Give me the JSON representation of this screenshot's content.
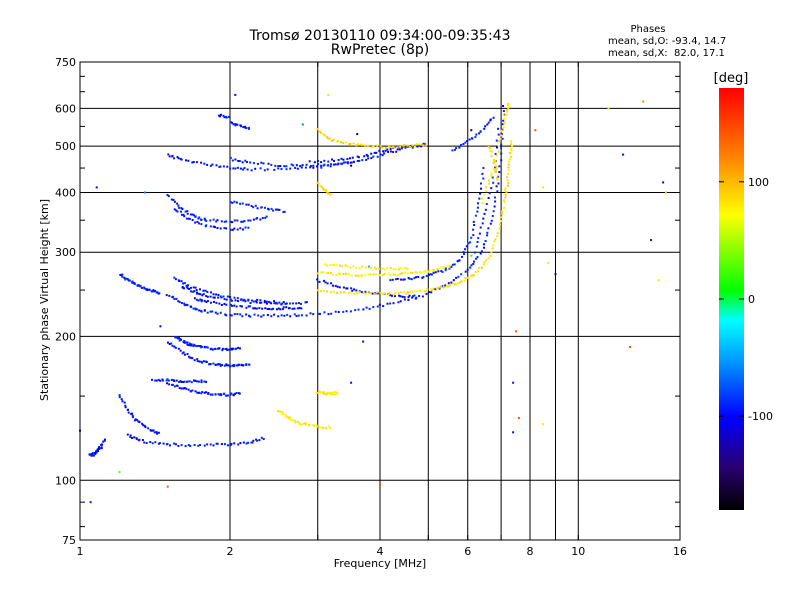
{
  "chart_data": {
    "type": "scatter",
    "title": "Tromsø 20130110 09:34:00-09:35:43",
    "subtitle": "RwPretec (8p)",
    "xlabel": "Frequency [MHz]",
    "ylabel": "Stationary phase Virtual Height [km]",
    "x_scale": "log",
    "y_scale": "log",
    "xlim": [
      1,
      16
    ],
    "ylim": [
      75,
      750
    ],
    "grid": true,
    "x_ticks": [
      1,
      2,
      4,
      6,
      8,
      10,
      16
    ],
    "x_tick_labels": [
      "1",
      "2",
      "4",
      "6",
      "8",
      "10",
      "16"
    ],
    "x_minor_ticks": [
      3,
      5,
      7,
      9
    ],
    "y_ticks": [
      75,
      100,
      200,
      300,
      400,
      500,
      600,
      750
    ],
    "y_tick_labels": [
      "75",
      "100",
      "200",
      "300",
      "400",
      "500",
      "600",
      "750"
    ],
    "colorbar": {
      "label": "[deg]",
      "range": [
        -180,
        180
      ],
      "ticks": [
        100,
        0,
        -100
      ],
      "tick_labels": [
        "100",
        "0",
        "-100"
      ]
    },
    "stats": {
      "header": "Phases",
      "line1": "mean, sd,O: -93.4, 14.7",
      "line2": "mean, sd,X:  82.0, 17.1"
    },
    "traces": [
      {
        "x": [
          1.05,
          1.06,
          1.08,
          1.1,
          1.12
        ],
        "y": [
          113,
          113,
          115,
          117,
          122
        ],
        "phase": -95
      },
      {
        "x": [
          1.25,
          1.32,
          1.45,
          1.6,
          1.8,
          2.0,
          2.2,
          2.35
        ],
        "y": [
          124,
          121,
          119,
          118.5,
          118.5,
          119,
          120,
          123
        ],
        "phase": -92
      },
      {
        "x": [
          1.2,
          1.25,
          1.3,
          1.38,
          1.45
        ],
        "y": [
          150,
          140,
          133,
          128,
          125
        ],
        "phase": -95
      },
      {
        "x": [
          1.5,
          1.6,
          1.7,
          1.8,
          1.9,
          2.0,
          2.1
        ],
        "y": [
          160,
          156,
          153,
          152,
          151,
          151,
          152
        ],
        "phase": -93
      },
      {
        "x": [
          1.4,
          1.5,
          1.6,
          1.7,
          1.8
        ],
        "y": [
          162,
          162,
          161,
          161,
          161
        ],
        "phase": -92
      },
      {
        "x": [
          1.5,
          1.6,
          1.7,
          1.8,
          1.9,
          2.0,
          2.1,
          2.2
        ],
        "y": [
          195,
          185,
          179,
          176,
          174.5,
          174,
          174,
          175
        ],
        "phase": -94
      },
      {
        "x": [
          1.55,
          1.6,
          1.65,
          1.7,
          1.8,
          1.9,
          2.0,
          2.1
        ],
        "y": [
          200,
          196,
          193,
          191,
          189,
          188,
          188,
          189
        ],
        "phase": -92
      },
      {
        "x": [
          1.2,
          1.25,
          1.3,
          1.35,
          1.4,
          1.45
        ],
        "y": [
          270,
          262,
          257,
          252,
          249,
          246
        ],
        "phase": -90
      },
      {
        "x": [
          1.5,
          1.6,
          1.7,
          1.8,
          2.0,
          2.2,
          2.5,
          2.8,
          3.2,
          3.7,
          4.2,
          4.8,
          5.4,
          6.0,
          6.4,
          6.7,
          6.9,
          7.05,
          7.1
        ],
        "y": [
          245,
          235,
          228,
          225,
          222,
          221,
          221,
          222,
          224,
          228,
          234,
          242,
          255,
          275,
          300,
          350,
          420,
          520,
          620
        ],
        "phase": -92
      },
      {
        "x": [
          1.55,
          1.65,
          1.8,
          2.0,
          2.3,
          2.6,
          2.9
        ],
        "y": [
          265,
          255,
          247,
          241,
          237,
          235,
          235
        ],
        "phase": -92
      },
      {
        "x": [
          1.6,
          1.7,
          1.8,
          2.0,
          2.2,
          2.4,
          2.6
        ],
        "y": [
          255,
          248,
          243,
          239,
          236,
          235,
          234
        ],
        "phase": -95
      },
      {
        "x": [
          1.7,
          1.8,
          2.0,
          2.2,
          2.4,
          2.6,
          2.8
        ],
        "y": [
          240,
          236,
          232,
          230,
          229,
          229,
          230
        ],
        "phase": -95
      },
      {
        "x": [
          3.0,
          3.3,
          3.6,
          4.0,
          4.4,
          4.8
        ],
        "y": [
          262,
          254,
          249,
          245,
          243,
          242
        ],
        "phase": -95
      },
      {
        "x": [
          4.2,
          4.6,
          5.0,
          5.4,
          5.8,
          6.1,
          6.3,
          6.5
        ],
        "y": [
          262,
          264,
          268,
          275,
          290,
          320,
          380,
          460
        ],
        "phase": -90
      },
      {
        "x": [
          1.5,
          1.6,
          1.7,
          1.8,
          2.0,
          2.2,
          2.4
        ],
        "y": [
          395,
          370,
          355,
          350,
          348,
          350,
          355
        ],
        "phase": -92
      },
      {
        "x": [
          1.55,
          1.65,
          1.8,
          2.0,
          2.2
        ],
        "y": [
          370,
          352,
          340,
          335,
          337
        ],
        "phase": -95
      },
      {
        "x": [
          2.0,
          2.2,
          2.4,
          2.6
        ],
        "y": [
          383,
          375,
          368,
          365
        ],
        "phase": -92
      },
      {
        "x": [
          1.5,
          1.6,
          1.8,
          2.0,
          2.2,
          2.6,
          3.0,
          3.4,
          3.8,
          4.2,
          4.6,
          5.0
        ],
        "y": [
          480,
          468,
          457,
          450,
          447,
          448,
          452,
          460,
          472,
          486,
          498,
          505
        ],
        "phase": -93
      },
      {
        "x": [
          2.0,
          2.2,
          2.5,
          2.8,
          3.2,
          3.6
        ],
        "y": [
          470,
          462,
          456,
          455,
          457,
          465
        ],
        "phase": -95
      },
      {
        "x": [
          2.9,
          3.3,
          3.7,
          4.1,
          4.5
        ],
        "y": [
          463,
          468,
          476,
          490,
          502
        ],
        "phase": -100
      },
      {
        "x": [
          2.0,
          2.1,
          2.2
        ],
        "y": [
          560,
          550,
          545
        ],
        "phase": -92
      },
      {
        "x": [
          1.9,
          2.0
        ],
        "y": [
          580,
          575
        ],
        "phase": -95
      },
      {
        "x": [
          5.6,
          6.0,
          6.4,
          6.8
        ],
        "y": [
          490,
          510,
          540,
          580
        ],
        "phase": -92
      },
      {
        "x": [
          6.2,
          6.5,
          6.8,
          6.95
        ],
        "y": [
          300,
          360,
          440,
          560
        ],
        "phase": -90
      },
      {
        "x": [
          3.0,
          3.4,
          3.8,
          4.2,
          4.6,
          5.0,
          5.4,
          5.8,
          6.2,
          6.6,
          6.9,
          7.1,
          7.2,
          7.3,
          7.35
        ],
        "y": [
          250,
          247,
          246,
          246,
          247,
          250,
          254,
          260,
          270,
          290,
          330,
          380,
          420,
          470,
          520
        ],
        "phase": 85
      },
      {
        "x": [
          3.0,
          3.3,
          3.6,
          4.0,
          4.4,
          4.8,
          5.2,
          5.6
        ],
        "y": [
          272,
          270,
          269,
          269,
          270,
          272,
          276,
          282
        ],
        "phase": 80
      },
      {
        "x": [
          3.1,
          3.4,
          3.8,
          4.2,
          4.6
        ],
        "y": [
          283,
          280,
          278,
          277,
          277
        ],
        "phase": 78
      },
      {
        "x": [
          6.4,
          6.7,
          7.0,
          7.15,
          7.25
        ],
        "y": [
          380,
          440,
          520,
          580,
          620
        ],
        "phase": 82
      },
      {
        "x": [
          6.6,
          6.8,
          6.9
        ],
        "y": [
          500,
          460,
          420
        ],
        "phase": 85
      },
      {
        "x": [
          2.5,
          2.6,
          2.7,
          2.8,
          3.0,
          3.2
        ],
        "y": [
          140,
          136,
          133,
          131,
          129.5,
          129
        ],
        "phase": 80
      },
      {
        "x": [
          3.0,
          3.1,
          3.2,
          3.3
        ],
        "y": [
          153,
          152,
          152,
          152
        ],
        "phase": 80
      },
      {
        "x": [
          3.0,
          3.1,
          3.2
        ],
        "y": [
          420,
          405,
          395
        ],
        "phase": 85
      },
      {
        "x": [
          3.0,
          3.2,
          3.5,
          3.8,
          4.2,
          4.6,
          5.0
        ],
        "y": [
          540,
          515,
          505,
          500,
          498,
          500,
          505
        ],
        "phase": 88
      }
    ],
    "scatter_points": [
      {
        "x": 1.08,
        "y": 410,
        "phase": -95
      },
      {
        "x": 1.35,
        "y": 400,
        "phase": -60
      },
      {
        "x": 1.45,
        "y": 210,
        "phase": -100
      },
      {
        "x": 1.0,
        "y": 127,
        "phase": -95
      },
      {
        "x": 1.2,
        "y": 104,
        "phase": 30
      },
      {
        "x": 1.5,
        "y": 97,
        "phase": 140
      },
      {
        "x": 1.05,
        "y": 90,
        "phase": -95
      },
      {
        "x": 2.05,
        "y": 640,
        "phase": -95
      },
      {
        "x": 3.15,
        "y": 640,
        "phase": 85
      },
      {
        "x": 2.8,
        "y": 555,
        "phase": -60
      },
      {
        "x": 3.5,
        "y": 160,
        "phase": -95
      },
      {
        "x": 3.7,
        "y": 195,
        "phase": -95
      },
      {
        "x": 4.0,
        "y": 98,
        "phase": 140
      },
      {
        "x": 7.4,
        "y": 160,
        "phase": -95
      },
      {
        "x": 7.4,
        "y": 126,
        "phase": -95
      },
      {
        "x": 7.5,
        "y": 205,
        "phase": 140
      },
      {
        "x": 7.6,
        "y": 135,
        "phase": 140
      },
      {
        "x": 8.2,
        "y": 540,
        "phase": 140
      },
      {
        "x": 8.5,
        "y": 410,
        "phase": 85
      },
      {
        "x": 8.5,
        "y": 131,
        "phase": 80
      },
      {
        "x": 8.7,
        "y": 285,
        "phase": 80
      },
      {
        "x": 9.0,
        "y": 270,
        "phase": -140
      },
      {
        "x": 11.5,
        "y": 600,
        "phase": 60
      },
      {
        "x": 12.3,
        "y": 480,
        "phase": -95
      },
      {
        "x": 12.7,
        "y": 190,
        "phase": 140
      },
      {
        "x": 13.5,
        "y": 620,
        "phase": 120
      },
      {
        "x": 14.0,
        "y": 318,
        "phase": -140
      },
      {
        "x": 14.8,
        "y": 420,
        "phase": -140
      },
      {
        "x": 15.0,
        "y": 400,
        "phase": 100
      },
      {
        "x": 14.5,
        "y": 262,
        "phase": 60
      },
      {
        "x": 3.5,
        "y": 455,
        "phase": -160
      },
      {
        "x": 3.6,
        "y": 530,
        "phase": -160
      },
      {
        "x": 3.8,
        "y": 280,
        "phase": -40
      },
      {
        "x": 6.1,
        "y": 540,
        "phase": -160
      },
      {
        "x": 6.1,
        "y": 295,
        "phase": 20
      }
    ]
  }
}
